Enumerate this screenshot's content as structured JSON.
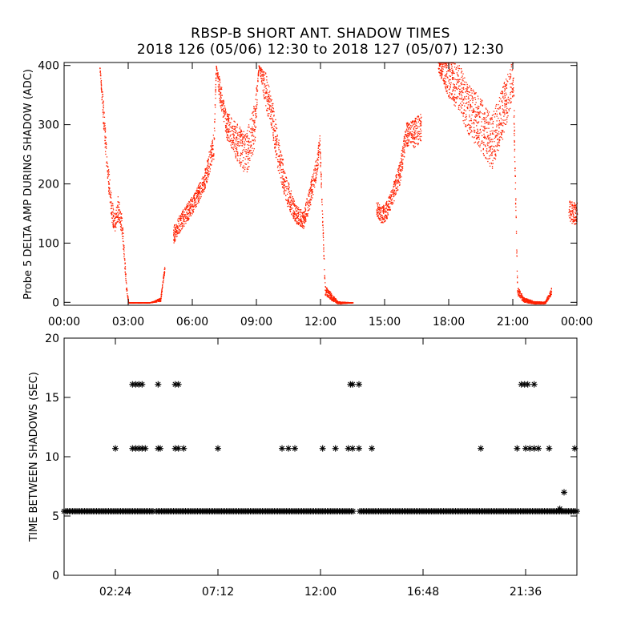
{
  "title_line1": "RBSP-B SHORT ANT. SHADOW TIMES",
  "title_line2": "2018 126 (05/06) 12:30 to 2018 127 (05/07) 12:30",
  "colors": {
    "top_points": "#ff2000",
    "bottom_points": "#000000",
    "axis": "#000000"
  },
  "chart_data": [
    {
      "type": "scatter",
      "title": "",
      "ylabel": "Probe 5 DELTA AMP DURING SHADOW (ADC)",
      "xlabel": "",
      "x_unit": "hours",
      "xlim": [
        0,
        24
      ],
      "ylim": [
        -5,
        405
      ],
      "yticks": [
        0,
        100,
        200,
        300,
        400
      ],
      "ytick_labels": [
        "0",
        "100",
        "200",
        "300",
        "400"
      ],
      "xticks": [
        0,
        3,
        6,
        9,
        12,
        15,
        18,
        21,
        24
      ],
      "xtick_labels": [
        "00:00",
        "03:00",
        "06:00",
        "09:00",
        "12:00",
        "15:00",
        "18:00",
        "21:00",
        "00:00"
      ],
      "grid": false,
      "point_color": "#ff2000",
      "envelope": {
        "x": [
          0.3,
          0.5,
          1.0,
          1.5,
          1.65,
          1.8,
          2.0,
          2.2,
          2.35,
          2.5,
          2.7,
          2.9,
          3.0,
          3.2,
          3.5,
          4.0,
          4.5,
          4.7,
          4.8,
          5.1,
          5.5,
          6.0,
          6.5,
          7.0,
          7.1,
          7.25,
          7.6,
          8.0,
          8.5,
          8.9,
          9.1,
          9.4,
          9.7,
          10.0,
          10.4,
          10.8,
          11.2,
          11.5,
          11.8,
          11.95,
          12.2,
          12.5,
          12.8,
          13.5,
          14.0,
          14.3,
          14.6,
          14.8,
          15.0,
          15.3,
          15.7,
          16.0,
          16.3,
          16.7,
          17.0,
          17.3,
          17.5,
          18.0,
          18.5,
          19.0,
          19.5,
          20.0,
          20.5,
          21.0,
          21.2,
          21.5,
          22.0,
          22.5,
          22.8,
          23.3,
          23.6,
          24.0
        ],
        "y": [
          null,
          null,
          null,
          null,
          400,
          330,
          230,
          160,
          130,
          160,
          130,
          25,
          0,
          0,
          0,
          0,
          5,
          60,
          null,
          115,
          140,
          165,
          200,
          265,
          400,
          360,
          300,
          275,
          250,
          300,
          400,
          360,
          320,
          250,
          190,
          150,
          140,
          180,
          230,
          270,
          20,
          10,
          0,
          0,
          null,
          null,
          160,
          150,
          150,
          175,
          220,
          285,
          285,
          295,
          null,
          null,
          400,
          380,
          360,
          320,
          300,
          270,
          320,
          380,
          20,
          5,
          0,
          0,
          20,
          null,
          155,
          150
        ],
        "spread": [
          0,
          0,
          0,
          0,
          0,
          20,
          20,
          20,
          15,
          20,
          15,
          5,
          0,
          0,
          0,
          0,
          3,
          5,
          0,
          15,
          15,
          15,
          15,
          25,
          0,
          20,
          25,
          30,
          35,
          40,
          0,
          30,
          30,
          30,
          25,
          15,
          15,
          20,
          20,
          15,
          8,
          6,
          2,
          0,
          0,
          0,
          12,
          15,
          15,
          15,
          20,
          20,
          25,
          25,
          0,
          0,
          10,
          35,
          40,
          45,
          45,
          45,
          45,
          30,
          8,
          4,
          2,
          2,
          6,
          0,
          18,
          20
        ]
      }
    },
    {
      "type": "scatter",
      "title": "",
      "ylabel": "TIME BETWEEN SHADOWS (SEC)",
      "xlabel": "",
      "x_unit": "hours",
      "xlim": [
        0,
        24
      ],
      "ylim": [
        0,
        20
      ],
      "yticks": [
        0,
        5,
        10,
        15,
        20
      ],
      "ytick_labels": [
        "0",
        "5",
        "10",
        "15",
        "20"
      ],
      "xticks": [
        2.4,
        7.2,
        12.0,
        16.8,
        21.6
      ],
      "xtick_labels": [
        "02:24",
        "07:12",
        "12:00",
        "16:48",
        "21:36"
      ],
      "grid": false,
      "point_color": "#000000",
      "marker": "asterisk",
      "baseline": {
        "y": 5.4,
        "x_start": 0.0,
        "x_end": 24.0,
        "gaps": [
          [
            4.2,
            4.3
          ],
          [
            13.6,
            13.8
          ]
        ]
      },
      "points": [
        {
          "x": 2.4,
          "y": 10.7
        },
        {
          "x": 3.2,
          "y": 10.7
        },
        {
          "x": 3.35,
          "y": 10.7
        },
        {
          "x": 3.5,
          "y": 10.7
        },
        {
          "x": 3.65,
          "y": 10.7
        },
        {
          "x": 3.8,
          "y": 10.7
        },
        {
          "x": 4.4,
          "y": 10.7
        },
        {
          "x": 4.5,
          "y": 10.7
        },
        {
          "x": 5.2,
          "y": 10.7
        },
        {
          "x": 5.35,
          "y": 10.7
        },
        {
          "x": 5.6,
          "y": 10.7
        },
        {
          "x": 7.2,
          "y": 10.7
        },
        {
          "x": 10.2,
          "y": 10.7
        },
        {
          "x": 10.5,
          "y": 10.7
        },
        {
          "x": 10.8,
          "y": 10.7
        },
        {
          "x": 12.1,
          "y": 10.7
        },
        {
          "x": 12.7,
          "y": 10.7
        },
        {
          "x": 13.3,
          "y": 10.7
        },
        {
          "x": 13.5,
          "y": 10.7
        },
        {
          "x": 13.8,
          "y": 10.7
        },
        {
          "x": 14.4,
          "y": 10.7
        },
        {
          "x": 19.5,
          "y": 10.7
        },
        {
          "x": 21.2,
          "y": 10.7
        },
        {
          "x": 21.6,
          "y": 10.7
        },
        {
          "x": 21.8,
          "y": 10.7
        },
        {
          "x": 22.0,
          "y": 10.7
        },
        {
          "x": 22.2,
          "y": 10.7
        },
        {
          "x": 22.7,
          "y": 10.7
        },
        {
          "x": 23.9,
          "y": 10.7
        },
        {
          "x": 3.2,
          "y": 16.1
        },
        {
          "x": 3.35,
          "y": 16.1
        },
        {
          "x": 3.5,
          "y": 16.1
        },
        {
          "x": 3.65,
          "y": 16.1
        },
        {
          "x": 4.4,
          "y": 16.1
        },
        {
          "x": 5.2,
          "y": 16.1
        },
        {
          "x": 5.35,
          "y": 16.1
        },
        {
          "x": 13.4,
          "y": 16.1
        },
        {
          "x": 13.5,
          "y": 16.1
        },
        {
          "x": 13.8,
          "y": 16.1
        },
        {
          "x": 21.4,
          "y": 16.1
        },
        {
          "x": 21.55,
          "y": 16.1
        },
        {
          "x": 21.7,
          "y": 16.1
        },
        {
          "x": 22.0,
          "y": 16.1
        },
        {
          "x": 23.4,
          "y": 7.0
        },
        {
          "x": 23.2,
          "y": 5.6
        }
      ]
    }
  ]
}
